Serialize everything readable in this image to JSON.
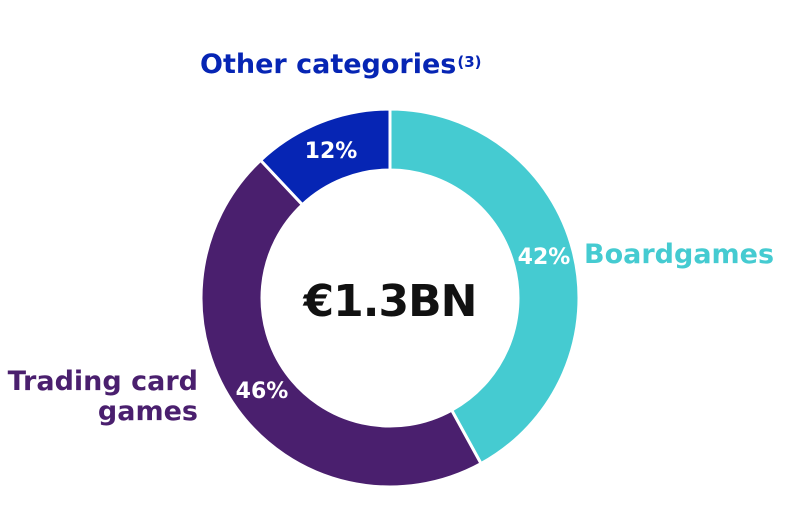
{
  "chart_data": {
    "type": "pie",
    "subtype": "donut",
    "center_label": "€1.3BN",
    "slices": [
      {
        "name": "Boardgames",
        "value": 42,
        "label": "42%",
        "color": "#45cbd1"
      },
      {
        "name": "Trading card games",
        "name_lines": [
          "Trading card",
          "games"
        ],
        "value": 46,
        "label": "46%",
        "color": "#4a1f6e"
      },
      {
        "name": "Other categories",
        "footnote": "(3)",
        "value": 12,
        "label": "12%",
        "color": "#0625b4"
      }
    ]
  }
}
